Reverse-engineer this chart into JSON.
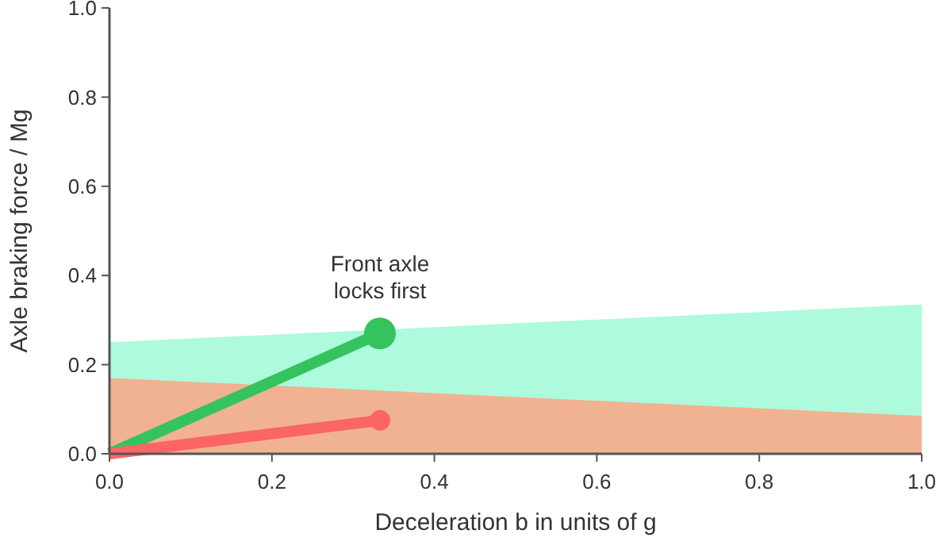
{
  "chart_data": {
    "type": "line",
    "xlabel": "Deceleration b in units of g",
    "ylabel": "Axle braking force / Mg",
    "xlim": [
      0,
      1
    ],
    "ylim": [
      0,
      1
    ],
    "xticks": [
      {
        "value": 0,
        "label": "0.0"
      },
      {
        "value": 0.2,
        "label": "0.2"
      },
      {
        "value": 0.4,
        "label": "0.4"
      },
      {
        "value": 0.6,
        "label": "0.6"
      },
      {
        "value": 0.8,
        "label": "0.8"
      },
      {
        "value": 1,
        "label": "1.0"
      }
    ],
    "yticks": [
      {
        "value": 0,
        "label": "0.0"
      },
      {
        "value": 0.2,
        "label": "0.2"
      },
      {
        "value": 0.4,
        "label": "0.4"
      },
      {
        "value": 0.6,
        "label": "0.6"
      },
      {
        "value": 0.8,
        "label": "0.8"
      },
      {
        "value": 1,
        "label": "1.0"
      }
    ],
    "grid": false,
    "series": [
      {
        "type": "area",
        "color": "#adfadc",
        "x": [
          0,
          1
        ],
        "values": [
          0.25,
          0.335
        ]
      },
      {
        "type": "area",
        "color": "#f0b290",
        "x": [
          0,
          1
        ],
        "values": [
          0.17,
          0.085
        ]
      },
      {
        "color": "#35c35f",
        "x": [
          0,
          0.333
        ],
        "values": [
          0,
          0.27
        ],
        "marker": "none"
      },
      {
        "color": "#fb6565",
        "x": [
          0,
          0.333
        ],
        "values": [
          0,
          0.075
        ],
        "marker": "none"
      },
      {
        "type": "scatter",
        "color": "#35c35f",
        "x": [
          0.333
        ],
        "values": [
          0.27
        ],
        "marker": "circle"
      },
      {
        "type": "scatter",
        "color": "#fb6565",
        "x": [
          0.333
        ],
        "values": [
          0.075
        ],
        "marker": "circle"
      }
    ],
    "annotations": [
      {
        "text": "Front axle\nlocks first",
        "x": 0.333,
        "y": 0.27
      }
    ]
  }
}
